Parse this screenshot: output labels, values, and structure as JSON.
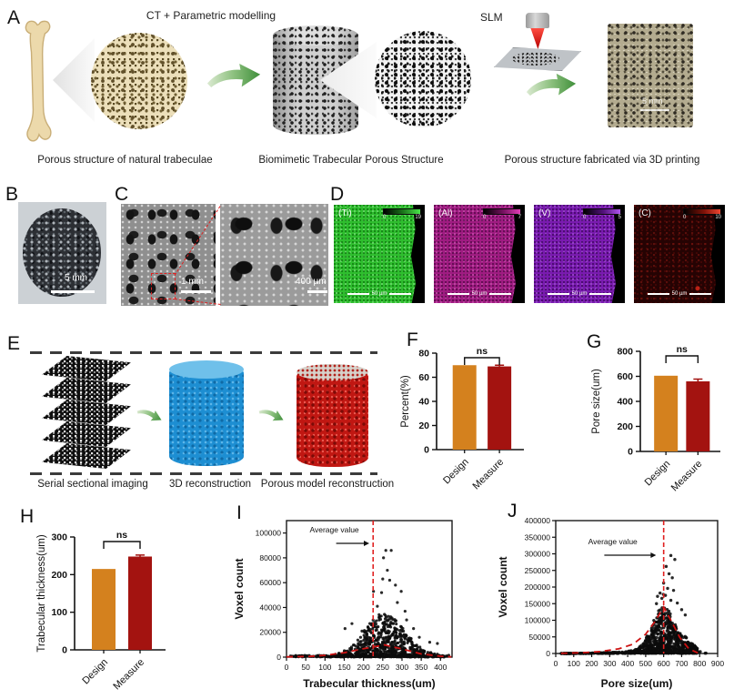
{
  "labels": {
    "a": "A",
    "b": "B",
    "c": "C",
    "d": "D",
    "e": "E",
    "f": "F",
    "g": "G",
    "h": "H",
    "i": "I",
    "j": "J"
  },
  "panel_a": {
    "ct_label": "CT + Parametric modelling",
    "slm_label": "SLM",
    "caption_natural": "Porous structure of natural trabeculae",
    "caption_biomimetic": "Biomimetic Trabecular Porous Structure",
    "caption_printed": "Porous structure fabricated via 3D printing",
    "photo_scale": "5 mm"
  },
  "panel_b": {
    "scale": "5 mm"
  },
  "panel_c": {
    "scale_left": "1 mm",
    "scale_right": "400 µm"
  },
  "panel_d": {
    "maps": [
      {
        "label": "(Ti)",
        "cbar_min": "0",
        "cbar_max": "19",
        "scale": "50 µm"
      },
      {
        "label": "(Al)",
        "cbar_min": "0",
        "cbar_max": "7",
        "scale": "50 µm"
      },
      {
        "label": "(V)",
        "cbar_min": "0",
        "cbar_max": "5",
        "scale": "50 µm"
      },
      {
        "label": "(C)",
        "cbar_min": "0",
        "cbar_max": "10",
        "scale": "50 µm"
      }
    ]
  },
  "panel_e": {
    "caption_serial": "Serial sectional imaging",
    "caption_3d": "3D reconstruction",
    "caption_porous": "Porous model reconstruction"
  },
  "colors": {
    "design_bar": "#D4811E",
    "measure_bar": "#A31310",
    "arrow_green": "#4C9A3F",
    "avg_line_red": "#E02020",
    "eds_ti": "#2FBE2F",
    "eds_al": "#A01C82",
    "eds_v": "#7A1BB0",
    "eds_c": "#250303",
    "recon_blue": "#1D8ED2",
    "recon_red": "#BF1410"
  },
  "chart_data": [
    {
      "id": "F",
      "type": "bar",
      "ylabel": "Percent(%)",
      "ylim": [
        0,
        80
      ],
      "yticks": [
        0,
        20,
        40,
        60,
        80
      ],
      "categories": [
        "Design",
        "Measure"
      ],
      "values": [
        70,
        69
      ],
      "errors": [
        0,
        1
      ],
      "sig": "ns"
    },
    {
      "id": "G",
      "type": "bar",
      "ylabel": "Pore size(um)",
      "ylim": [
        0,
        800
      ],
      "yticks": [
        0,
        200,
        400,
        600,
        800
      ],
      "categories": [
        "Design",
        "Measure"
      ],
      "values": [
        605,
        560
      ],
      "errors": [
        0,
        18
      ],
      "sig": "ns"
    },
    {
      "id": "H",
      "type": "bar",
      "ylabel": "Trabecular thickness(um)",
      "ylim": [
        0,
        300
      ],
      "yticks": [
        0,
        100,
        200,
        300
      ],
      "categories": [
        "Design",
        "Measure"
      ],
      "values": [
        215,
        248
      ],
      "errors": [
        0,
        4
      ],
      "sig": "ns"
    },
    {
      "id": "I",
      "type": "scatter",
      "xlabel": "Trabecular thickness(um)",
      "ylabel": "Voxel count",
      "xlim": [
        0,
        430
      ],
      "xticks": [
        0,
        50,
        100,
        150,
        200,
        250,
        300,
        350,
        400
      ],
      "ylim": [
        0,
        110000
      ],
      "yticks": [
        0,
        20000,
        40000,
        60000,
        80000,
        100000
      ],
      "annotation": "Average value",
      "avg_x": 225,
      "cloud": {
        "center": 255,
        "sd": 62,
        "n": 720,
        "peak_y": 34000
      },
      "outliers": [
        [
          258,
          86000
        ],
        [
          272,
          86000
        ],
        [
          252,
          80000
        ],
        [
          262,
          70000
        ],
        [
          250,
          63000
        ],
        [
          268,
          62000
        ],
        [
          283,
          58000
        ],
        [
          226,
          53000
        ],
        [
          247,
          52000
        ],
        [
          298,
          53000
        ],
        [
          236,
          41000
        ],
        [
          288,
          44000
        ],
        [
          308,
          37000
        ],
        [
          312,
          30000
        ],
        [
          170,
          27000
        ],
        [
          152,
          23000
        ],
        [
          196,
          21000
        ],
        [
          330,
          23000
        ],
        [
          345,
          16000
        ],
        [
          372,
          12000
        ],
        [
          392,
          11000
        ]
      ],
      "fit_curve": [
        [
          0,
          200
        ],
        [
          60,
          600
        ],
        [
          100,
          1500
        ],
        [
          150,
          3600
        ],
        [
          200,
          6800
        ],
        [
          255,
          9800
        ],
        [
          300,
          6600
        ],
        [
          350,
          2600
        ],
        [
          400,
          700
        ],
        [
          428,
          200
        ]
      ]
    },
    {
      "id": "J",
      "type": "scatter",
      "xlabel": "Pore size(um)",
      "ylabel": "Voxel count",
      "xlim": [
        0,
        900
      ],
      "xticks": [
        0,
        100,
        200,
        300,
        400,
        500,
        600,
        700,
        800,
        900
      ],
      "ylim": [
        0,
        400000
      ],
      "yticks": [
        0,
        50000,
        100000,
        150000,
        200000,
        250000,
        300000,
        350000,
        400000
      ],
      "annotation": "Average value",
      "avg_x": 600,
      "cloud": {
        "center": 600,
        "sd": 78,
        "n": 640,
        "peak_y": 135000
      },
      "outliers": [
        [
          640,
          295000
        ],
        [
          662,
          283000
        ],
        [
          614,
          262000
        ],
        [
          630,
          240000
        ],
        [
          648,
          228000
        ],
        [
          600,
          212000
        ],
        [
          622,
          196000
        ],
        [
          655,
          190000
        ],
        [
          580,
          182000
        ],
        [
          598,
          178000
        ],
        [
          566,
          172000
        ],
        [
          590,
          166000
        ],
        [
          640,
          160000
        ],
        [
          676,
          152000
        ],
        [
          700,
          132000
        ],
        [
          720,
          116000
        ],
        [
          560,
          150000
        ],
        [
          610,
          175000
        ]
      ],
      "fit_curve": [
        [
          30,
          500
        ],
        [
          150,
          2500
        ],
        [
          250,
          6000
        ],
        [
          350,
          14000
        ],
        [
          430,
          28000
        ],
        [
          500,
          58000
        ],
        [
          550,
          95000
        ],
        [
          600,
          140000
        ],
        [
          640,
          100000
        ],
        [
          690,
          48000
        ],
        [
          740,
          14000
        ],
        [
          790,
          2000
        ]
      ]
    }
  ]
}
